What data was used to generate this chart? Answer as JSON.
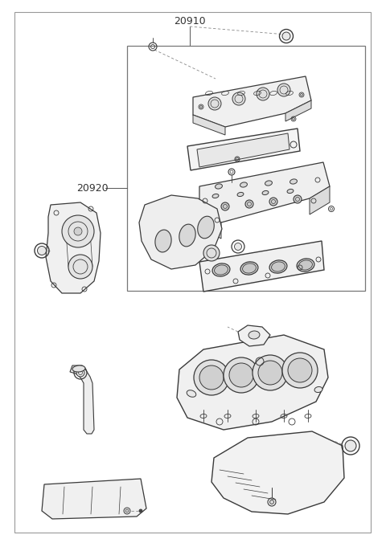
{
  "title": "20910",
  "label_20920": "20920",
  "bg_color": "#ffffff",
  "line_color": "#3a3a3a",
  "light_line": "#777777",
  "dash_color": "#888888",
  "text_color": "#333333",
  "fig_width": 4.8,
  "fig_height": 6.76,
  "dpi": 100,
  "border_color": "#999999"
}
